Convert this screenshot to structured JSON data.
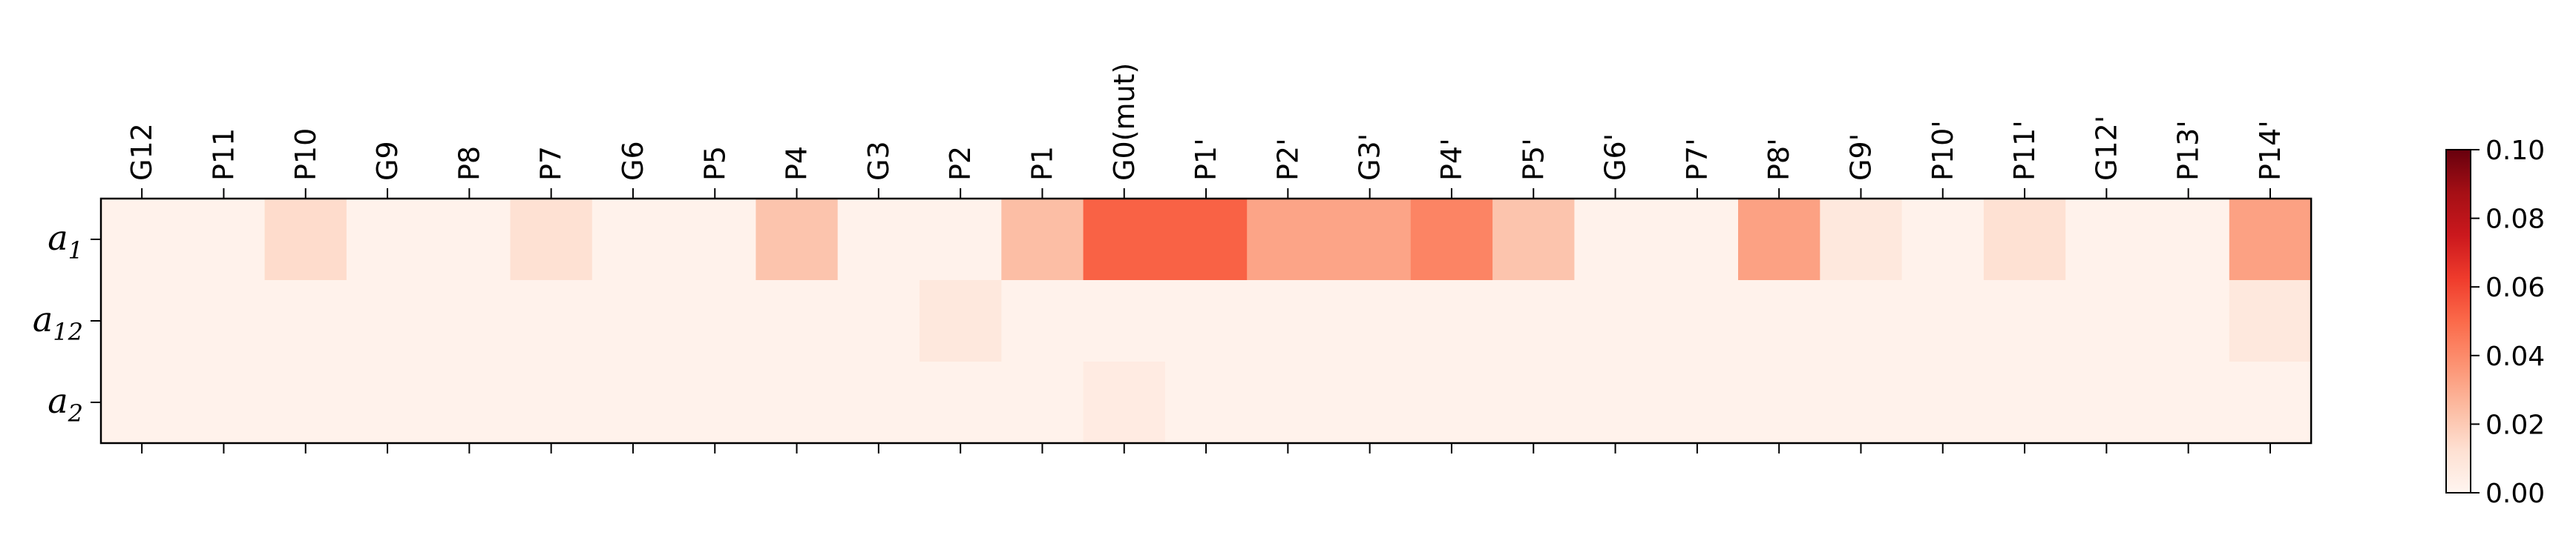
{
  "chart_data": {
    "type": "heatmap",
    "title": "",
    "xlabel": "",
    "ylabel": "",
    "x_categories": [
      "G12",
      "P11",
      "P10",
      "G9",
      "P8",
      "P7",
      "G6",
      "P5",
      "P4",
      "G3",
      "P2",
      "P1",
      "G0(mut)",
      "P1'",
      "P2'",
      "G3'",
      "P4'",
      "P5'",
      "G6'",
      "P7'",
      "P8'",
      "G9'",
      "P10'",
      "P11'",
      "G12'",
      "P13'",
      "P14'"
    ],
    "y_categories": [
      {
        "base": "a",
        "sub": "1"
      },
      {
        "base": "a",
        "sub": "12"
      },
      {
        "base": "a",
        "sub": "2"
      }
    ],
    "values": [
      [
        0.002,
        0.002,
        0.014,
        0.002,
        0.002,
        0.012,
        0.002,
        0.002,
        0.022,
        0.002,
        0.002,
        0.024,
        0.052,
        0.052,
        0.032,
        0.032,
        0.042,
        0.022,
        0.002,
        0.002,
        0.033,
        0.008,
        0.002,
        0.012,
        0.002,
        0.002,
        0.033
      ],
      [
        0.002,
        0.002,
        0.002,
        0.002,
        0.002,
        0.002,
        0.002,
        0.002,
        0.002,
        0.002,
        0.008,
        0.002,
        0.002,
        0.002,
        0.002,
        0.002,
        0.002,
        0.002,
        0.002,
        0.002,
        0.002,
        0.002,
        0.002,
        0.002,
        0.002,
        0.002,
        0.008
      ],
      [
        0.002,
        0.002,
        0.002,
        0.002,
        0.002,
        0.002,
        0.002,
        0.002,
        0.002,
        0.002,
        0.002,
        0.002,
        0.006,
        0.002,
        0.002,
        0.002,
        0.002,
        0.002,
        0.002,
        0.002,
        0.002,
        0.002,
        0.002,
        0.002,
        0.002,
        0.002,
        0.002
      ]
    ],
    "colormap": "Reds",
    "vmin": 0.0,
    "vmax": 0.1,
    "colorbar": {
      "ticks": [
        "0.00",
        "0.02",
        "0.04",
        "0.06",
        "0.08",
        "0.10"
      ]
    },
    "x_tick_position": "top",
    "grid": false
  }
}
